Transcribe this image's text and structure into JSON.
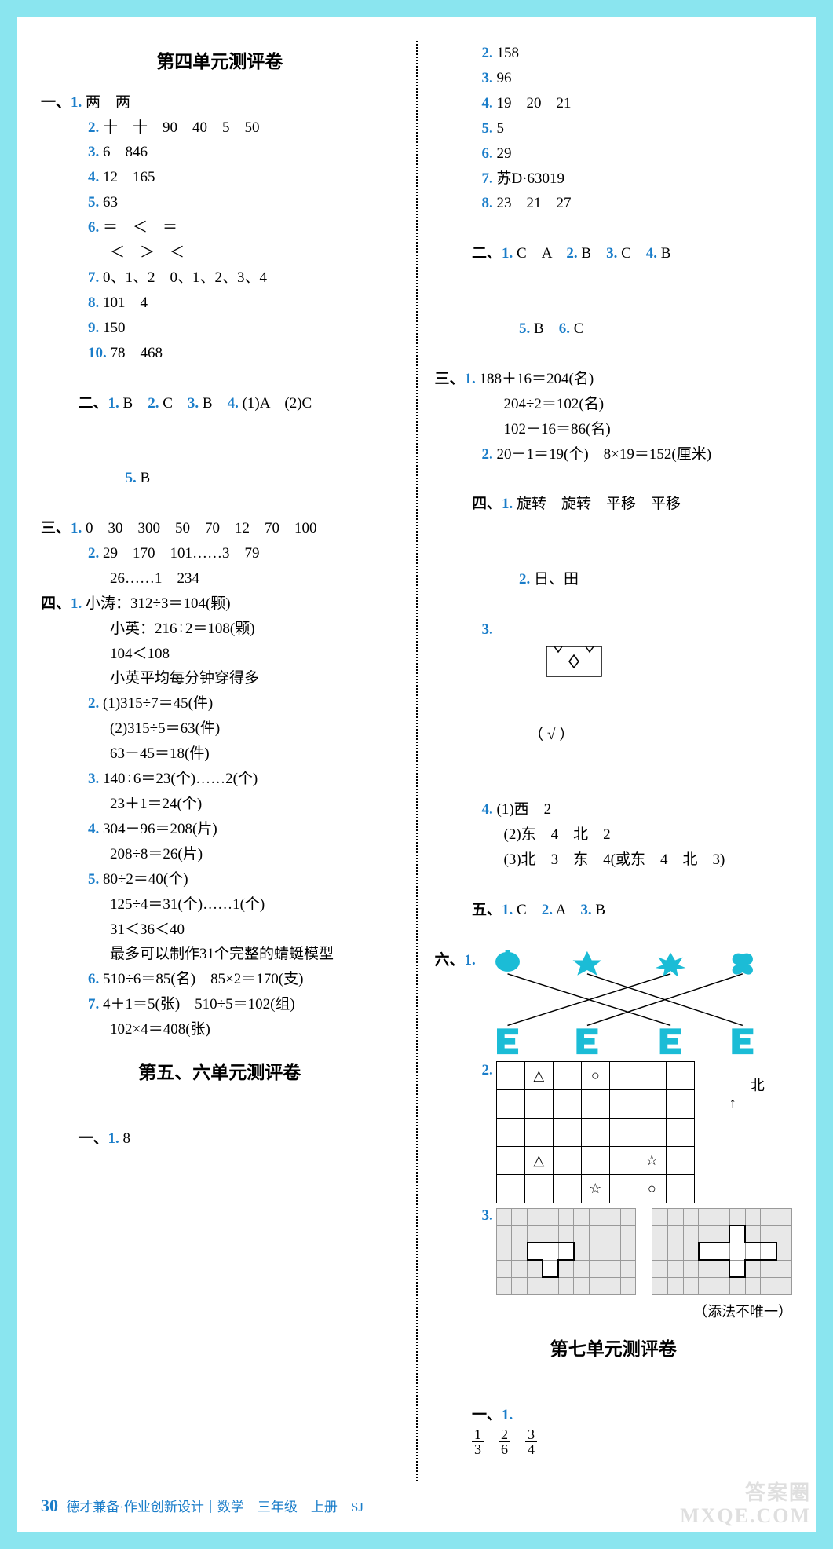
{
  "page_number": "30",
  "footer_text": "德才兼备·作业创新设计｜数学　三年级　上册　SJ",
  "watermark_top": "答案圈",
  "watermark_bottom": "MXQE.COM",
  "colors": {
    "border": "#8ae5ef",
    "accent": "#1a7dc9",
    "shape": "#1bbcd6",
    "grid_bg": "#e8e8e8",
    "text": "#000000",
    "bg": "#ffffff"
  },
  "left": {
    "title1": "第四单元测评卷",
    "sec1": [
      {
        "n": "1.",
        "t": "两　两"
      },
      {
        "n": "2.",
        "t": "十　十　90　40　5　50"
      },
      {
        "n": "3.",
        "t": "6　846"
      },
      {
        "n": "4.",
        "t": "12　165"
      },
      {
        "n": "5.",
        "t": "63"
      },
      {
        "n": "6.",
        "t": "＝　＜　＝"
      },
      {
        "n": "",
        "t": "＜　＞　＜"
      },
      {
        "n": "7.",
        "t": "0、1、2　0、1、2、3、4"
      },
      {
        "n": "8.",
        "t": "101　4"
      },
      {
        "n": "9.",
        "t": "150"
      },
      {
        "n": "10.",
        "t": "78　468"
      }
    ],
    "sec2_line1": "B　",
    "sec2_n2": "2.",
    "sec2_t2": "C　",
    "sec2_n3": "3.",
    "sec2_t3": "B　",
    "sec2_n4": "4.",
    "sec2_t4": "(1)A　(2)C",
    "sec2_line2_n": "5.",
    "sec2_line2_t": "B",
    "sec3": [
      {
        "n": "1.",
        "t": "0　30　300　50　70　12　70　100"
      },
      {
        "n": "2.",
        "t": "29　170　101……3　79"
      },
      {
        "n": "",
        "t": "26……1　234"
      }
    ],
    "sec4": [
      {
        "n": "1.",
        "lines": [
          "小涛：312÷3＝104(颗)",
          "小英：216÷2＝108(颗)",
          "104＜108",
          "小英平均每分钟穿得多"
        ]
      },
      {
        "n": "2.",
        "lines": [
          "(1)315÷7＝45(件)",
          "(2)315÷5＝63(件)",
          "63－45＝18(件)"
        ]
      },
      {
        "n": "3.",
        "lines": [
          "140÷6＝23(个)……2(个)",
          "23＋1＝24(个)"
        ]
      },
      {
        "n": "4.",
        "lines": [
          "304－96＝208(片)",
          "208÷8＝26(片)"
        ]
      },
      {
        "n": "5.",
        "lines": [
          "80÷2＝40(个)",
          "125÷4＝31(个)……1(个)",
          "31＜36＜40",
          "最多可以制作31个完整的蜻蜓模型"
        ]
      },
      {
        "n": "6.",
        "lines": [
          "510÷6＝85(名)　85×2＝170(支)"
        ]
      },
      {
        "n": "7.",
        "lines": [
          "4＋1＝5(张)　510÷5＝102(组)",
          "102×4＝408(张)"
        ]
      }
    ],
    "title2": "第五、六单元测评卷",
    "sec1b_n": "1.",
    "sec1b_t": "8"
  },
  "right": {
    "cont": [
      {
        "n": "2.",
        "t": "158"
      },
      {
        "n": "3.",
        "t": "96"
      },
      {
        "n": "4.",
        "t": "19　20　21"
      },
      {
        "n": "5.",
        "t": "5"
      },
      {
        "n": "6.",
        "t": "29"
      },
      {
        "n": "7.",
        "t": "苏D·63019"
      },
      {
        "n": "8.",
        "t": "23　21　27"
      }
    ],
    "sec2_line1": {
      "n1": "1.",
      "t1": "C　A　",
      "n2": "2.",
      "t2": "B　",
      "n3": "3.",
      "t3": "C　",
      "n4": "4.",
      "t4": "B"
    },
    "sec2_line2": {
      "n5": "5.",
      "t5": "B　",
      "n6": "6.",
      "t6": "C"
    },
    "sec3": [
      {
        "n": "1.",
        "lines": [
          "188＋16＝204(名)",
          "204÷2＝102(名)",
          "102－16＝86(名)"
        ]
      },
      {
        "n": "2.",
        "lines": [
          "20－1＝19(个)　8×19＝152(厘米)"
        ]
      }
    ],
    "sec4_1": {
      "n": "1.",
      "t": "旋转　旋转　平移　平移"
    },
    "sec4_2": {
      "n": "2.",
      "t": "日、田"
    },
    "sec4_3_n": "3.",
    "sec4_3_mark": "（ √ ）",
    "sec4_4": [
      {
        "n": "4.",
        "t": "(1)西　2"
      },
      {
        "n": "",
        "t": "(2)东　4　北　2"
      },
      {
        "n": "",
        "t": "(3)北　3　东　4(或东　4　北　3)"
      }
    ],
    "sec5": {
      "n1": "1.",
      "t1": "C　",
      "n2": "2.",
      "t2": "A　",
      "n3": "3.",
      "t3": "B"
    },
    "sec6_1_n": "1.",
    "match": {
      "top_shapes": [
        "pumpkin",
        "star",
        "sparkle",
        "butterfly"
      ],
      "bottom_shapes": [
        "E",
        "E",
        "E",
        "E"
      ],
      "lines": [
        [
          0,
          2
        ],
        [
          1,
          3
        ],
        [
          2,
          0
        ],
        [
          3,
          1
        ]
      ],
      "shape_color": "#1bbcd6"
    },
    "sec6_2_n": "2.",
    "north_label": "北",
    "grid62": {
      "rows": 5,
      "cols": 7,
      "cells": [
        [
          "",
          "△",
          "",
          "○",
          "",
          "",
          ""
        ],
        [
          "",
          "",
          "",
          "",
          "",
          "",
          ""
        ],
        [
          "",
          "",
          "",
          "",
          "",
          "",
          ""
        ],
        [
          "",
          "△",
          "",
          "",
          "",
          "☆",
          ""
        ],
        [
          "",
          "",
          "",
          "☆",
          "",
          "○",
          ""
        ]
      ]
    },
    "sec6_3_n": "3.",
    "grid63a": {
      "rows": 5,
      "cols": 9,
      "shape_cells": [
        [
          2,
          2
        ],
        [
          2,
          3
        ],
        [
          2,
          4
        ],
        [
          3,
          3
        ]
      ]
    },
    "grid63b": {
      "rows": 5,
      "cols": 9,
      "shape_cells": [
        [
          1,
          5
        ],
        [
          2,
          3
        ],
        [
          2,
          4
        ],
        [
          2,
          5
        ],
        [
          2,
          6
        ],
        [
          2,
          7
        ],
        [
          3,
          5
        ]
      ]
    },
    "note": "（添法不唯一）",
    "title7": "第七单元测评卷",
    "sec1_7_n": "1.",
    "fracs": [
      [
        "1",
        "3"
      ],
      [
        "2",
        "6"
      ],
      [
        "3",
        "4"
      ]
    ]
  },
  "section_labels": {
    "s1": "一、",
    "s2": "二、",
    "s3": "三、",
    "s4": "四、",
    "s5": "五、",
    "s6": "六、"
  }
}
